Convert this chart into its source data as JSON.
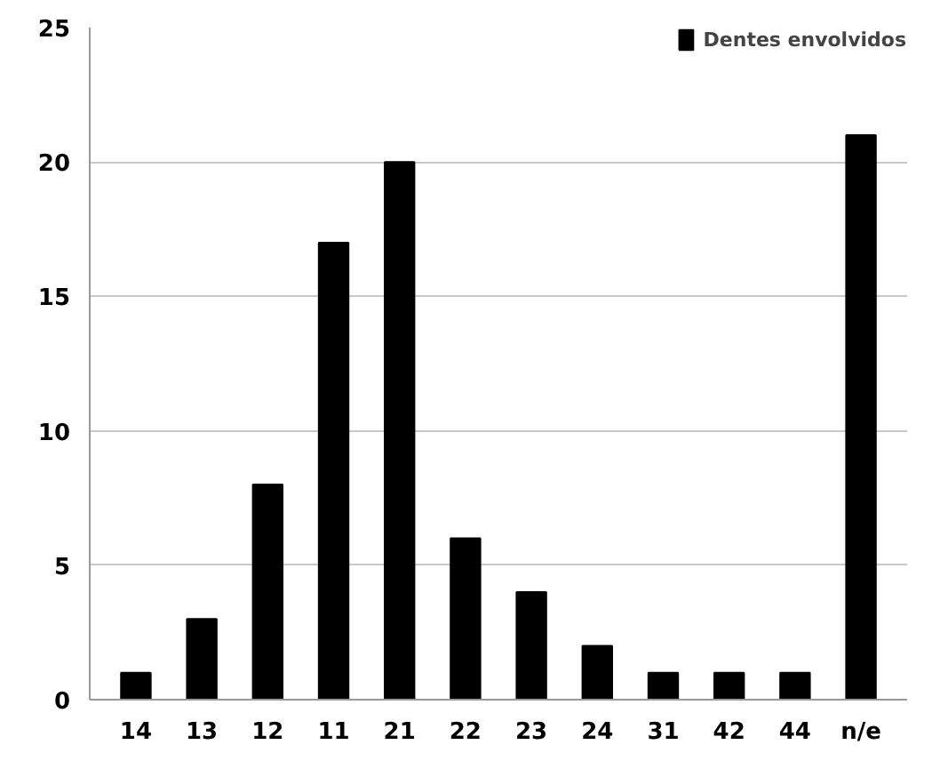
{
  "chart_data": {
    "type": "bar",
    "categories": [
      "14",
      "13",
      "12",
      "11",
      "21",
      "22",
      "23",
      "24",
      "31",
      "42",
      "44",
      "n/e"
    ],
    "series": [
      {
        "name": "Dentes envolvidos",
        "color": "#000000",
        "values": [
          1,
          3,
          8,
          17,
          20,
          6,
          4,
          2,
          1,
          1,
          1,
          21
        ]
      }
    ],
    "ylim": [
      0,
      25
    ],
    "yticks": [
      0,
      5,
      10,
      15,
      20,
      25
    ],
    "grid": "y",
    "legend": "top right"
  }
}
